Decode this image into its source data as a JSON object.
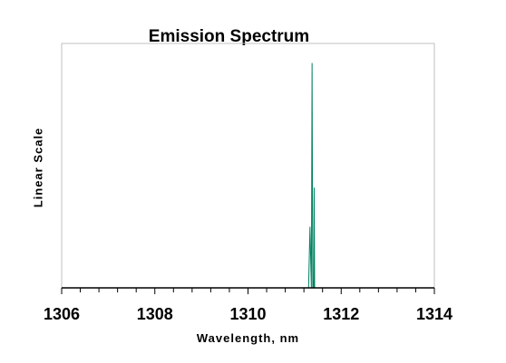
{
  "chart_data": {
    "type": "line",
    "title": "Emission Spectrum",
    "xlabel": "Wavelength, nm",
    "ylabel": "Linear Scale",
    "xlim": [
      1306,
      1314
    ],
    "ylim": [
      0,
      1
    ],
    "xticks": [
      "1306",
      "1308",
      "1310",
      "1312",
      "1314"
    ],
    "x_minor_step": 0.4,
    "grid": false,
    "color": "#008060",
    "series": [
      {
        "x": [
          1308.0,
          1311.3,
          1311.33,
          1311.36,
          1311.375,
          1311.39,
          1311.4,
          1311.41,
          1311.42,
          1311.43,
          1311.45,
          1313.0
        ],
        "y": [
          0.0,
          0.0,
          0.25,
          0.0,
          0.92,
          0.0,
          0.03,
          0.0,
          0.41,
          0.0,
          0.0,
          0.0
        ]
      }
    ]
  }
}
